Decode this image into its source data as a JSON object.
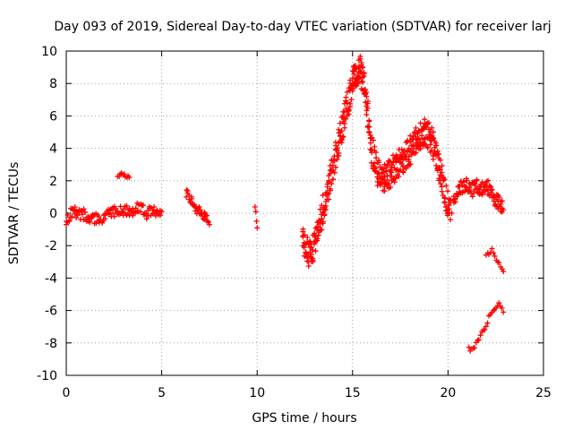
{
  "chart_data": {
    "type": "scatter",
    "title": "Day 093 of 2019, Sidereal Day-to-day VTEC variation (SDTVAR) for receiver larj",
    "xlabel": "GPS time / hours",
    "ylabel": "SDTVAR / TECUs",
    "xlim": [
      0,
      25
    ],
    "ylim": [
      -10,
      10
    ],
    "xticks": [
      0,
      5,
      10,
      15,
      20,
      25
    ],
    "xtick_labels": [
      "0",
      "5",
      "10",
      "15",
      "20",
      "25"
    ],
    "yticks": [
      -10,
      -8,
      -6,
      -4,
      -2,
      0,
      2,
      4,
      6,
      8,
      10
    ],
    "ytick_labels": [
      "-10",
      "-8",
      "-6",
      "-4",
      "-2",
      "0",
      "2",
      "4",
      "6",
      "8",
      "10"
    ],
    "grid": true,
    "marker": "+",
    "color": "#ff0000",
    "segments": [
      {
        "name": "early-band",
        "x": [
          0.0,
          0.3,
          0.6,
          1.0,
          1.4,
          1.8,
          2.2,
          2.6,
          3.0,
          3.4,
          3.8,
          4.2,
          4.6,
          5.0
        ],
        "y": [
          -0.4,
          0.1,
          0.0,
          -0.1,
          -0.3,
          -0.4,
          -0.1,
          0.1,
          0.2,
          0.1,
          0.4,
          0.0,
          0.2,
          0.1
        ],
        "spread": 0.35
      },
      {
        "name": "early-hump",
        "x": [
          2.7,
          2.9,
          3.1,
          3.3
        ],
        "y": [
          2.2,
          2.4,
          2.3,
          2.2
        ],
        "spread": 0.1
      },
      {
        "name": "mid-band",
        "x": [
          6.3,
          6.5,
          6.7,
          6.9,
          7.1,
          7.3,
          7.5
        ],
        "y": [
          1.2,
          0.9,
          0.4,
          0.2,
          0.0,
          -0.3,
          -0.7
        ],
        "spread": 0.3
      },
      {
        "name": "isolated-10h",
        "x": [
          9.9,
          10.0
        ],
        "y": [
          0.3,
          -0.9
        ],
        "spread": 0.2
      },
      {
        "name": "main-peak",
        "x": [
          12.4,
          12.7,
          13.0,
          13.3,
          13.6,
          13.9,
          14.2,
          14.5,
          14.8,
          15.0,
          15.2,
          15.4,
          15.6,
          15.8,
          16.0,
          16.3,
          16.6,
          16.9,
          17.2,
          17.5,
          17.8,
          18.1,
          18.4,
          18.7,
          19.0,
          19.3,
          19.6,
          19.9,
          20.2
        ],
        "y": [
          -1.5,
          -2.5,
          -2.0,
          -0.5,
          1.0,
          2.5,
          4.0,
          5.5,
          7.0,
          8.0,
          8.6,
          8.8,
          7.8,
          6.0,
          4.0,
          2.5,
          2.2,
          2.4,
          2.8,
          3.2,
          3.6,
          4.0,
          4.6,
          5.0,
          4.8,
          4.0,
          2.5,
          1.0,
          0.0
        ],
        "spread": 0.9
      },
      {
        "name": "late-band",
        "x": [
          20.3,
          20.6,
          20.9,
          21.2,
          21.5,
          21.8,
          22.1,
          22.4,
          22.7,
          22.9
        ],
        "y": [
          0.6,
          1.5,
          1.8,
          1.4,
          1.7,
          1.5,
          1.6,
          1.0,
          0.6,
          0.2
        ],
        "spread": 0.45
      },
      {
        "name": "late-descent",
        "x": [
          22.0,
          22.3,
          22.6,
          22.9
        ],
        "y": [
          -2.6,
          -2.3,
          -3.0,
          -3.6
        ],
        "spread": 0.15
      },
      {
        "name": "late-rise",
        "x": [
          21.1,
          21.4,
          21.7,
          22.0,
          22.3,
          22.6,
          22.9
        ],
        "y": [
          -8.4,
          -8.1,
          -7.6,
          -6.9,
          -6.0,
          -5.6,
          -6.1
        ],
        "spread": 0.2
      }
    ]
  }
}
